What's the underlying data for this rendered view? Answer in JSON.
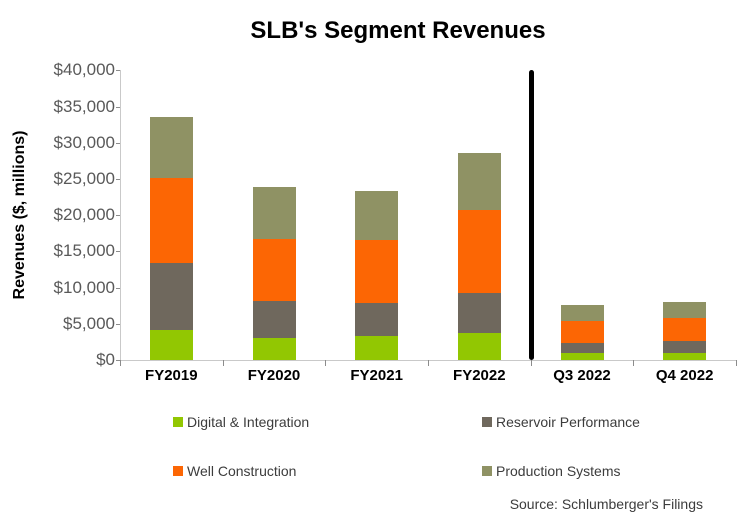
{
  "title": "SLB's Segment Revenues",
  "source_note": "Source: Schlumberger's Filings",
  "colors": {
    "digital_integration": "#92C702",
    "reservoir_performance": "#6F685D",
    "well_construction": "#FC6604",
    "production_systems": "#8F9264",
    "axis_line": "#C9C9C9",
    "tick_mark": "#8C8C8C",
    "tick_label_text": "#595959",
    "divider": "#000000"
  },
  "chart_data": {
    "type": "bar",
    "stacked": true,
    "title": "SLB's Segment Revenues",
    "xlabel": "",
    "ylabel": "Revenues ($, millions)",
    "ylim": [
      0,
      40000
    ],
    "ytick_step": 5000,
    "ytick_labels": [
      "$0",
      "$5,000",
      "$10,000",
      "$15,000",
      "$20,000",
      "$25,000",
      "$30,000",
      "$35,000",
      "$40,000"
    ],
    "grid": false,
    "legend_position": "bottom",
    "categories": [
      "FY2019",
      "FY2020",
      "FY2021",
      "FY2022",
      "Q3 2022",
      "Q4 2022"
    ],
    "series": [
      {
        "name": "Digital & Integration",
        "color": "#92C702",
        "values": [
          4091,
          3076,
          3290,
          3725,
          900,
          1012
        ]
      },
      {
        "name": "Reservoir Performance",
        "color": "#6F685D",
        "values": [
          9244,
          5021,
          4599,
          5553,
          1456,
          1554
        ]
      },
      {
        "name": "Well Construction",
        "color": "#FC6604",
        "values": [
          11815,
          8605,
          8706,
          11397,
          3084,
          3229
        ]
      },
      {
        "name": "Production Systems",
        "color": "#8F9264",
        "values": [
          8481,
          7138,
          6710,
          7862,
          2150,
          2215
        ]
      }
    ],
    "annotations": [
      {
        "type": "vertical-divider",
        "after_category": "FY2022",
        "color": "#000000",
        "note": "separates annual from quarterly bars"
      }
    ]
  }
}
